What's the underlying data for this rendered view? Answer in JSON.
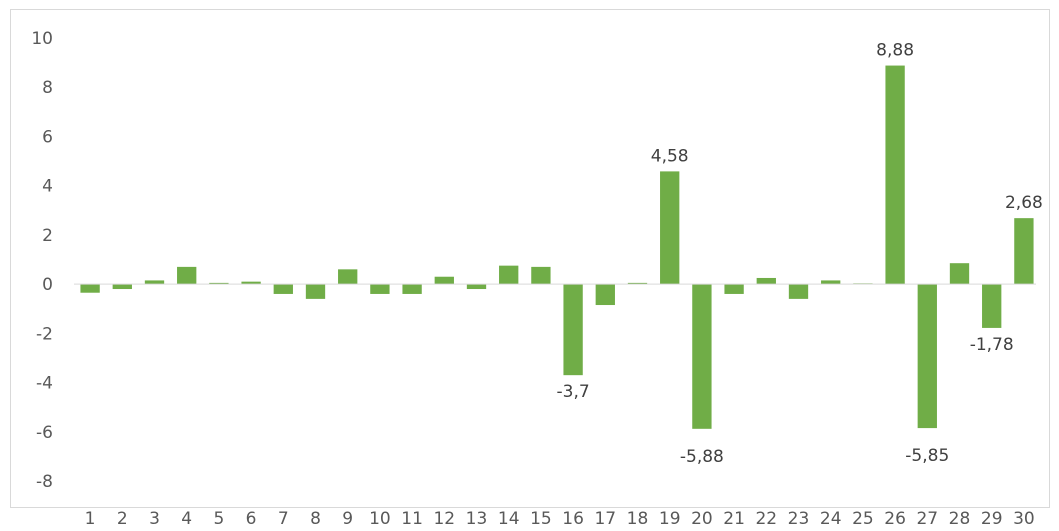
{
  "chart_data": {
    "type": "bar",
    "title": "",
    "xlabel": "",
    "ylabel": "",
    "ylim": [
      -8,
      10
    ],
    "yticks": [
      "-8",
      "-6",
      "-4",
      "-2",
      "0",
      "2",
      "4",
      "6",
      "8",
      "10"
    ],
    "categories": [
      "1",
      "2",
      "3",
      "4",
      "5",
      "6",
      "7",
      "8",
      "9",
      "10",
      "11",
      "12",
      "13",
      "14",
      "15",
      "16",
      "17",
      "18",
      "19",
      "20",
      "21",
      "22",
      "23",
      "24",
      "25",
      "26",
      "27",
      "28",
      "29",
      "30"
    ],
    "values": [
      -0.35,
      -0.2,
      0.15,
      0.7,
      0.05,
      0.1,
      -0.4,
      -0.6,
      0.6,
      -0.4,
      -0.4,
      0.3,
      -0.2,
      0.75,
      0.7,
      -3.7,
      -0.85,
      0.05,
      4.58,
      -5.88,
      -0.4,
      0.25,
      -0.6,
      0.15,
      0.03,
      8.88,
      -5.85,
      0.85,
      -1.78,
      2.68
    ],
    "data_labels": [
      {
        "category": "16",
        "text": "-3,7"
      },
      {
        "category": "19",
        "text": "4,58"
      },
      {
        "category": "20",
        "text": "-5,88"
      },
      {
        "category": "26",
        "text": "8,88"
      },
      {
        "category": "27",
        "text": "-5,85"
      },
      {
        "category": "29",
        "text": "-1,78"
      },
      {
        "category": "30",
        "text": "2,68"
      }
    ],
    "grid": false,
    "legend": "none",
    "bar_color": "#70ad47"
  }
}
